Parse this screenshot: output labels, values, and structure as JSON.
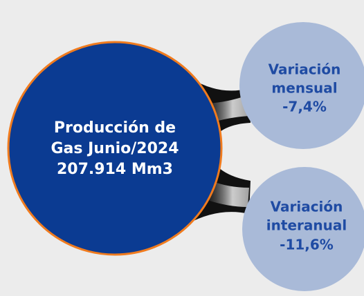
{
  "nodes": [
    {
      "lines": [
        "Producción de",
        "Gas Junio/2024",
        "207.914 Mm3"
      ]
    },
    {
      "lines": [
        "Variación",
        "mensual",
        "-7,4%"
      ]
    },
    {
      "lines": [
        "Variación",
        "interanual",
        "-11,6%"
      ]
    }
  ]
}
